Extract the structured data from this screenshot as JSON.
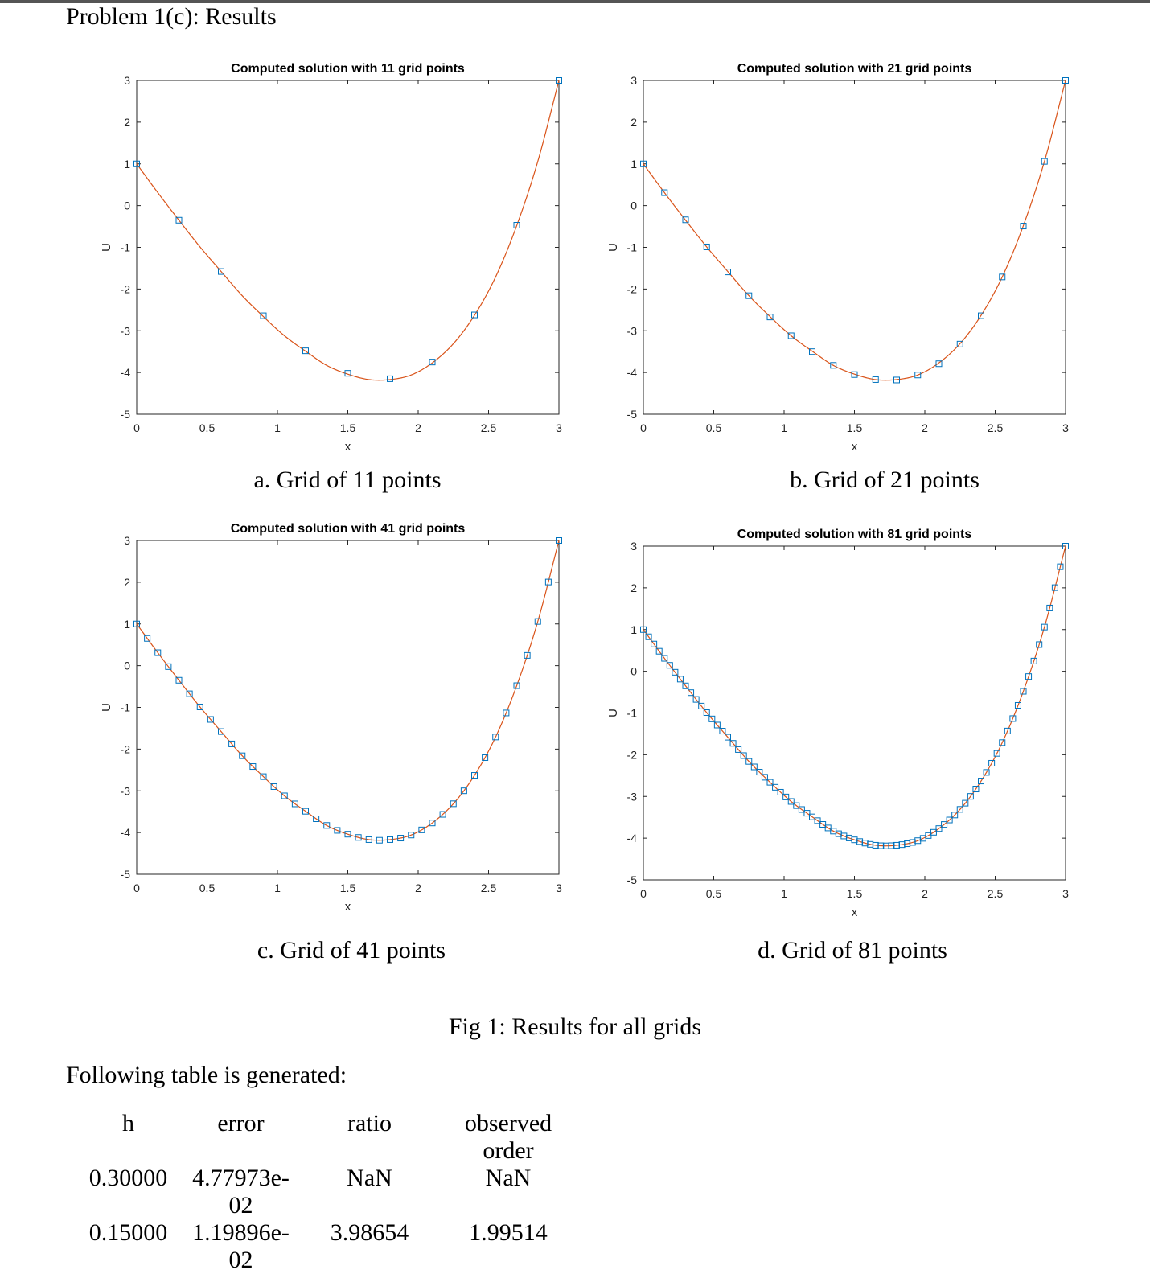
{
  "heading": "Problem 1(c):  Results",
  "chart_data": [
    {
      "type": "line",
      "title": "Computed solution with 11 grid points",
      "xlabel": "x",
      "ylabel": "U",
      "xlim": [
        0,
        3
      ],
      "ylim": [
        -5,
        3
      ],
      "xticks": [
        0,
        0.5,
        1,
        1.5,
        2,
        2.5,
        3
      ],
      "yticks": [
        -5,
        -4,
        -3,
        -2,
        -1,
        0,
        1,
        2,
        3
      ],
      "series": [
        {
          "marker": "square",
          "color": "#0072BD",
          "x": [
            0,
            0.3,
            0.6,
            0.9,
            1.2,
            1.5,
            1.8,
            2.1,
            2.4,
            2.7,
            3.0
          ],
          "y": [
            1.0,
            -0.35,
            -1.58,
            -2.64,
            -3.48,
            -4.02,
            -4.15,
            -3.75,
            -2.62,
            -0.47,
            3.0
          ]
        },
        {
          "line": "solid",
          "color": "#D95319",
          "function": "exact"
        }
      ]
    },
    {
      "type": "line",
      "title": "Computed solution with 21 grid points",
      "xlabel": "x",
      "ylabel": "U",
      "xlim": [
        0,
        3
      ],
      "ylim": [
        -5,
        3
      ],
      "xticks": [
        0,
        0.5,
        1,
        1.5,
        2,
        2.5,
        3
      ],
      "yticks": [
        -5,
        -4,
        -3,
        -2,
        -1,
        0,
        1,
        2,
        3
      ],
      "series": [
        {
          "marker": "square",
          "color": "#0072BD",
          "x": [
            0,
            0.15,
            0.3,
            0.45,
            0.6,
            0.75,
            0.9,
            1.05,
            1.2,
            1.35,
            1.5,
            1.65,
            1.8,
            1.95,
            2.1,
            2.25,
            2.4,
            2.55,
            2.7,
            2.85,
            3.0
          ],
          "y": [
            1.0,
            0.31,
            -0.34,
            -0.99,
            -1.59,
            -2.16,
            -2.67,
            -3.12,
            -3.5,
            -3.83,
            -4.05,
            -4.17,
            -4.18,
            -4.06,
            -3.79,
            -3.32,
            -2.64,
            -1.71,
            -0.49,
            1.06,
            3.0
          ]
        },
        {
          "line": "solid",
          "color": "#D95319",
          "function": "exact"
        }
      ]
    },
    {
      "type": "line",
      "title": "Computed solution with 41 grid points",
      "xlabel": "x",
      "ylabel": "U",
      "xlim": [
        0,
        3
      ],
      "ylim": [
        -5,
        3
      ],
      "xticks": [
        0,
        0.5,
        1,
        1.5,
        2,
        2.5,
        3
      ],
      "yticks": [
        -5,
        -4,
        -3,
        -2,
        -1,
        0,
        1,
        2,
        3
      ],
      "series": [
        {
          "marker": "square",
          "color": "#0072BD",
          "n": 41
        },
        {
          "line": "solid",
          "color": "#D95319",
          "function": "exact"
        }
      ]
    },
    {
      "type": "line",
      "title": "Computed solution with 81 grid points",
      "xlabel": "x",
      "ylabel": "U",
      "xlim": [
        0,
        3
      ],
      "ylim": [
        -5,
        3
      ],
      "xticks": [
        0,
        0.5,
        1,
        1.5,
        2,
        2.5,
        3
      ],
      "yticks": [
        -5,
        -4,
        -3,
        -2,
        -1,
        0,
        1,
        2,
        3
      ],
      "series": [
        {
          "marker": "square",
          "color": "#0072BD",
          "n": 81
        },
        {
          "line": "solid",
          "color": "#D95319",
          "function": "exact"
        }
      ]
    }
  ],
  "captions": [
    "a. Grid of 11 points",
    "b. Grid of 21 points",
    "c. Grid of 41 points",
    "d. Grid of 81 points"
  ],
  "fig_caption": "Fig 1: Results for all grids",
  "lead": "Following table is generated:",
  "table": {
    "headers": [
      "h",
      "error",
      "ratio",
      "observed order"
    ],
    "rows": [
      [
        "0.30000",
        "4.77973e-02",
        "NaN",
        "NaN"
      ],
      [
        "0.15000",
        "1.19896e-02",
        "3.98654",
        "1.99514"
      ]
    ]
  }
}
